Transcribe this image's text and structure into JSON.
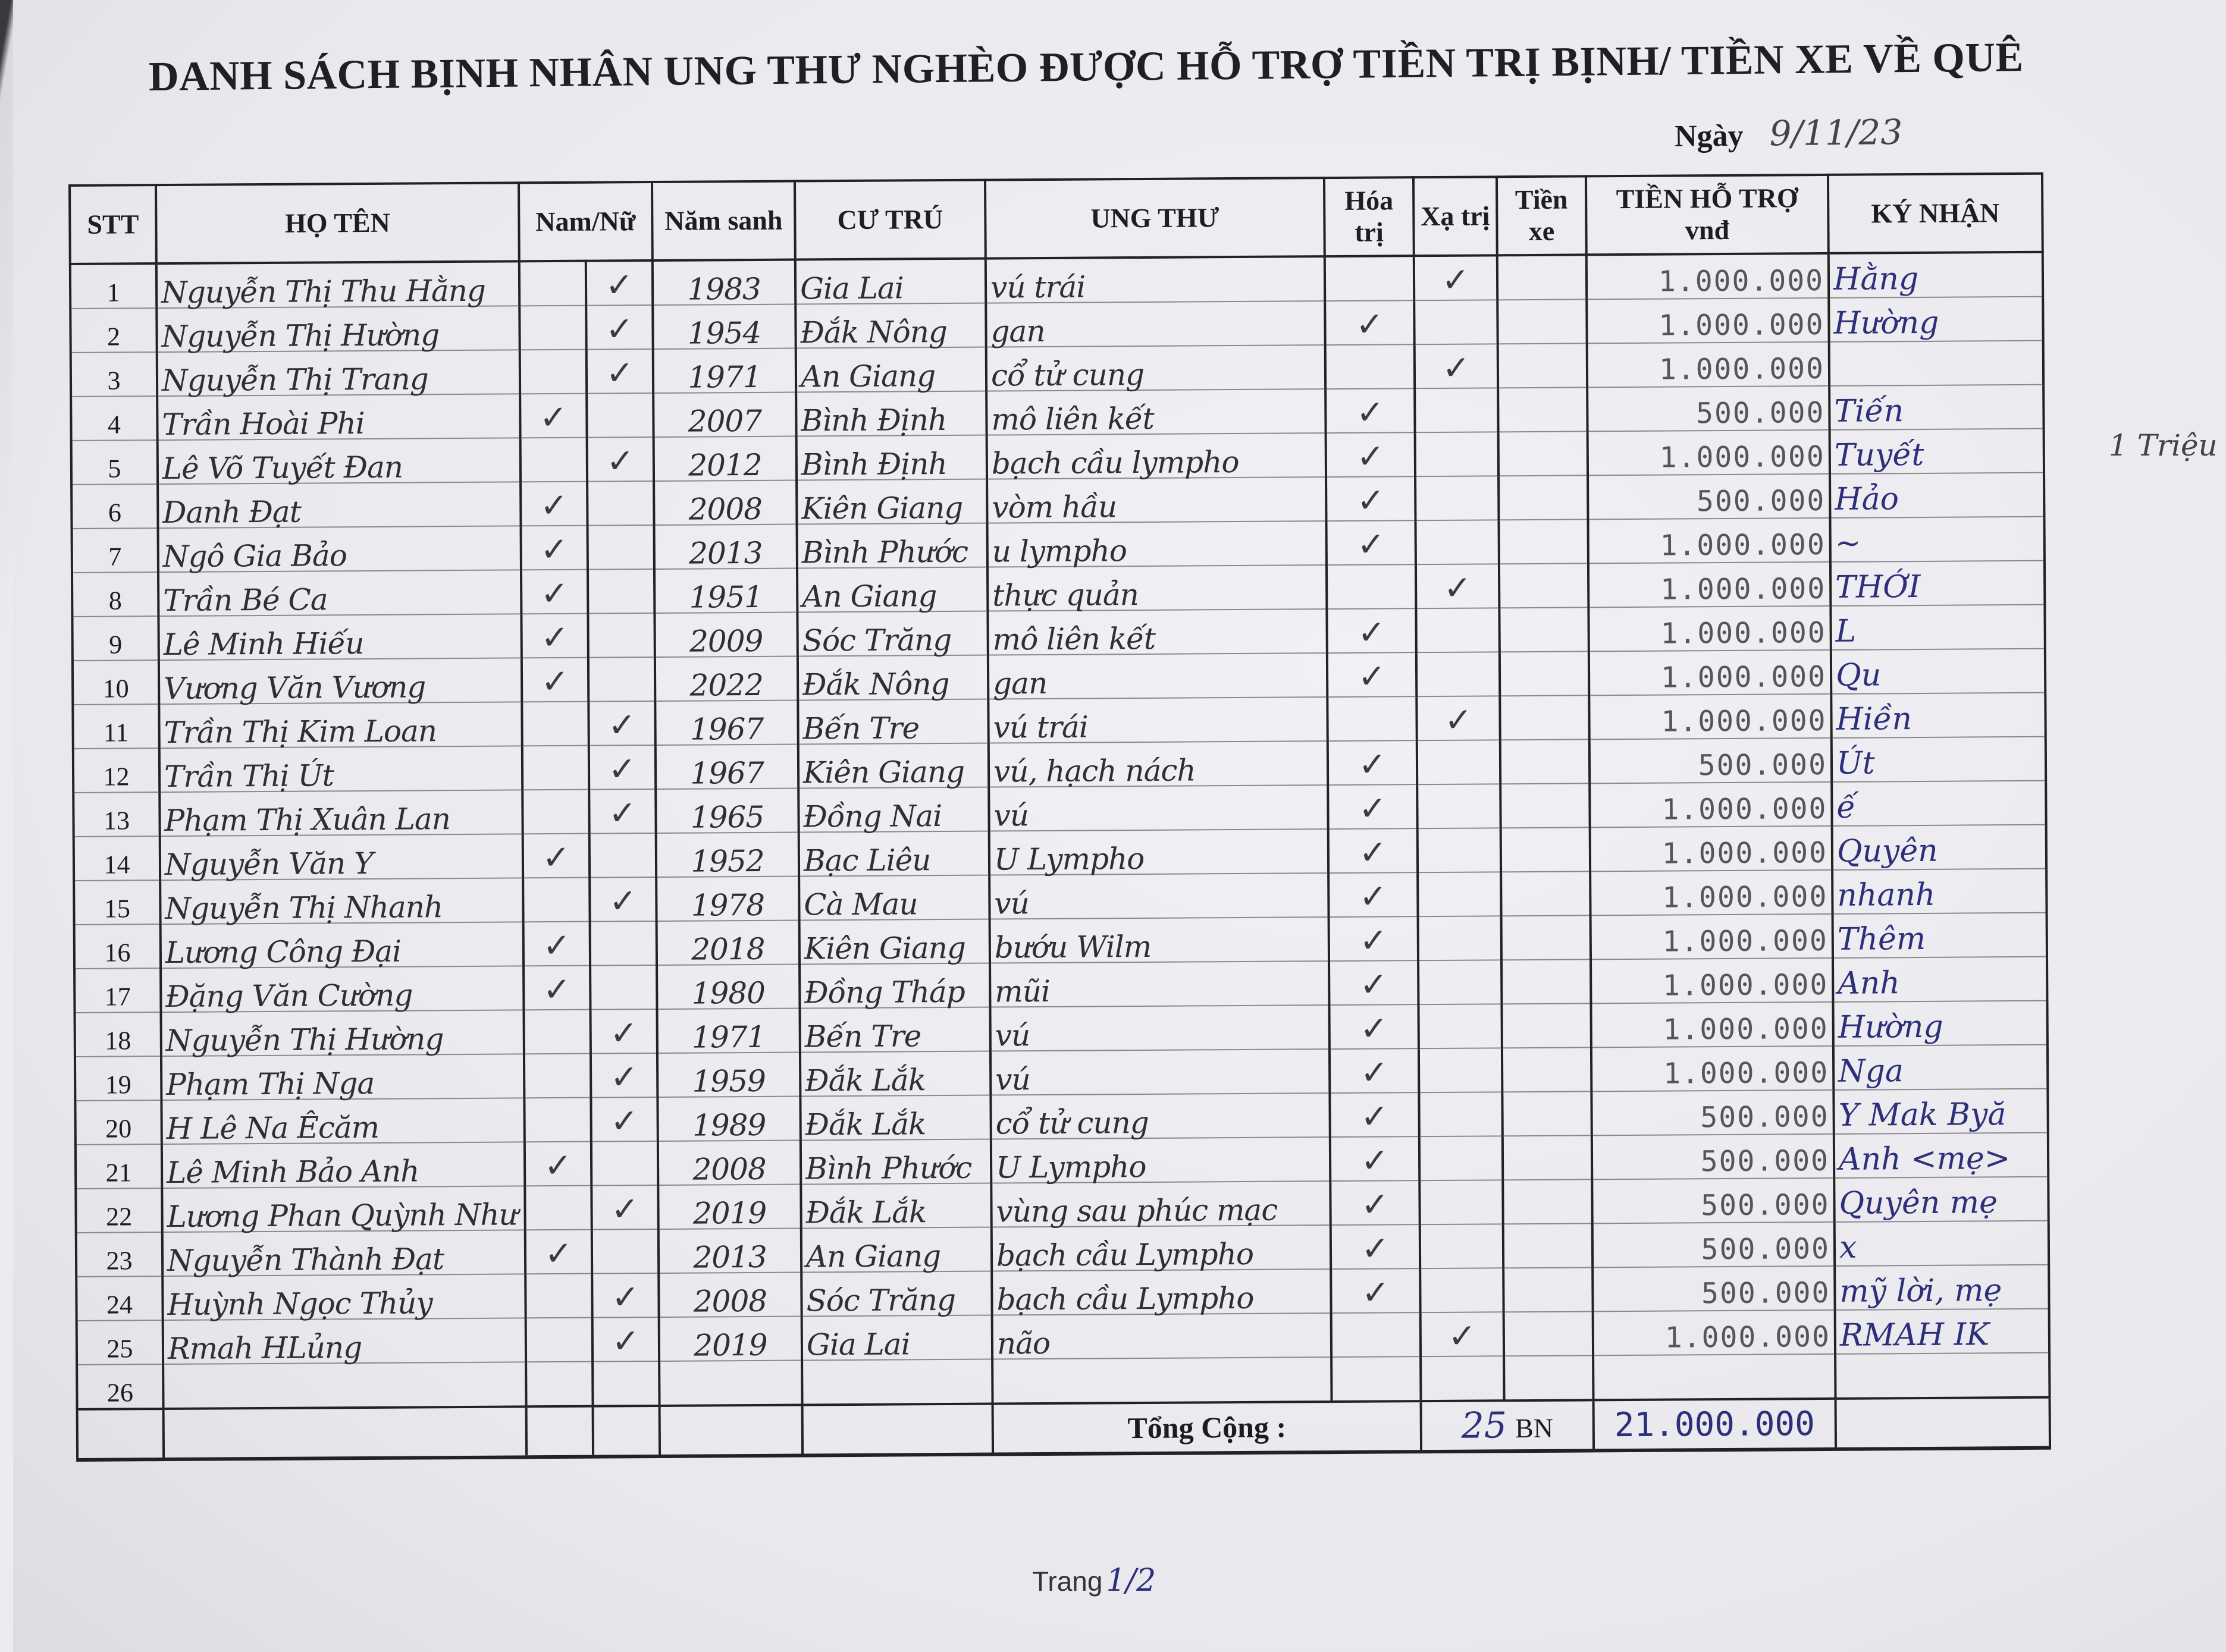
{
  "title": "DANH SÁCH BỊNH NHÂN UNG THƯ NGHÈO ĐƯỢC HỖ TRỢ TIỀN TRỊ BỊNH/ TIỀN XE VỀ QUÊ",
  "date_label": "Ngày",
  "date_value": "9/11/23",
  "headers": {
    "stt": "STT",
    "ho_ten": "HỌ TÊN",
    "gioi_tinh": "Nam/Nữ",
    "nam_sanh": "Năm sanh",
    "cu_tru": "CƯ TRÚ",
    "ung_thu": "UNG THƯ",
    "hoa_tri": "Hóa trị",
    "xa_tri": "Xạ trị",
    "tien_xe": "Tiền xe",
    "tien_ho_tro": "TIỀN HỖ TRỢ",
    "tien_ho_tro_unit": "vnđ",
    "ky_nhan": "KÝ NHẬN"
  },
  "check_mark": "✓",
  "rows": [
    {
      "stt": "1",
      "name": "Nguyễn Thị Thu Hằng",
      "gender": "nu",
      "year": "1983",
      "residence": "Gia Lai",
      "cancer": "vú trái",
      "hoa_tri": false,
      "xa_tri": true,
      "amount": "1.000.000",
      "signature": "Hằng"
    },
    {
      "stt": "2",
      "name": "Nguyễn Thị Hường",
      "gender": "nu",
      "year": "1954",
      "residence": "Đắk Nông",
      "cancer": "gan",
      "hoa_tri": true,
      "xa_tri": false,
      "amount": "1.000.000",
      "signature": "Hường"
    },
    {
      "stt": "3",
      "name": "Nguyễn Thị Trang",
      "gender": "nu",
      "year": "1971",
      "residence": "An Giang",
      "cancer": "cổ tử cung",
      "hoa_tri": false,
      "xa_tri": true,
      "amount": "1.000.000",
      "signature": ""
    },
    {
      "stt": "4",
      "name": "Trần Hoài Phi",
      "gender": "nam",
      "year": "2007",
      "residence": "Bình Định",
      "cancer": "mô liên kết",
      "hoa_tri": true,
      "xa_tri": false,
      "amount": "500.000",
      "signature": "Tiến"
    },
    {
      "stt": "5",
      "name": "Lê Võ Tuyết Đan",
      "gender": "nu",
      "year": "2012",
      "residence": "Bình Định",
      "cancer": "bạch cầu lympho",
      "hoa_tri": true,
      "xa_tri": false,
      "amount": "1.000.000",
      "signature": "Tuyết"
    },
    {
      "stt": "6",
      "name": "Danh Đạt",
      "gender": "nam",
      "year": "2008",
      "residence": "Kiên Giang",
      "cancer": "vòm hầu",
      "hoa_tri": true,
      "xa_tri": false,
      "amount": "500.000",
      "signature": "Hảo"
    },
    {
      "stt": "7",
      "name": "Ngô Gia Bảo",
      "gender": "nam",
      "year": "2013",
      "residence": "Bình Phước",
      "cancer": "u lympho",
      "hoa_tri": true,
      "xa_tri": false,
      "amount": "1.000.000",
      "signature": "~"
    },
    {
      "stt": "8",
      "name": "Trần Bé Ca",
      "gender": "nam",
      "year": "1951",
      "residence": "An Giang",
      "cancer": "thực quản",
      "hoa_tri": false,
      "xa_tri": true,
      "amount": "1.000.000",
      "signature": "THỚI"
    },
    {
      "stt": "9",
      "name": "Lê Minh Hiếu",
      "gender": "nam",
      "year": "2009",
      "residence": "Sóc Trăng",
      "cancer": "mô liên kết",
      "hoa_tri": true,
      "xa_tri": false,
      "amount": "1.000.000",
      "signature": "L"
    },
    {
      "stt": "10",
      "name": "Vương Văn Vương",
      "gender": "nam",
      "year": "2022",
      "residence": "Đắk Nông",
      "cancer": "gan",
      "hoa_tri": true,
      "xa_tri": false,
      "amount": "1.000.000",
      "signature": "Qu"
    },
    {
      "stt": "11",
      "name": "Trần Thị Kim Loan",
      "gender": "nu",
      "year": "1967",
      "residence": "Bến Tre",
      "cancer": "vú trái",
      "hoa_tri": false,
      "xa_tri": true,
      "amount": "1.000.000",
      "signature": "Hiền"
    },
    {
      "stt": "12",
      "name": "Trần Thị Út",
      "gender": "nu",
      "year": "1967",
      "residence": "Kiên Giang",
      "cancer": "vú, hạch nách",
      "hoa_tri": true,
      "xa_tri": false,
      "amount": "500.000",
      "signature": "Út"
    },
    {
      "stt": "13",
      "name": "Phạm Thị Xuân Lan",
      "gender": "nu",
      "year": "1965",
      "residence": "Đồng Nai",
      "cancer": "vú",
      "hoa_tri": true,
      "xa_tri": false,
      "amount": "1.000.000",
      "signature": "ế"
    },
    {
      "stt": "14",
      "name": "Nguyễn Văn Y",
      "gender": "nam",
      "year": "1952",
      "residence": "Bạc Liêu",
      "cancer": "U Lympho",
      "hoa_tri": true,
      "xa_tri": false,
      "amount": "1.000.000",
      "signature": "Quyên"
    },
    {
      "stt": "15",
      "name": "Nguyễn Thị Nhanh",
      "gender": "nu",
      "year": "1978",
      "residence": "Cà Mau",
      "cancer": "vú",
      "hoa_tri": true,
      "xa_tri": false,
      "amount": "1.000.000",
      "signature": "nhanh"
    },
    {
      "stt": "16",
      "name": "Lương Công Đại",
      "gender": "nam",
      "year": "2018",
      "residence": "Kiên Giang",
      "cancer": "bướu Wilm",
      "hoa_tri": true,
      "xa_tri": false,
      "amount": "1.000.000",
      "signature": "Thêm"
    },
    {
      "stt": "17",
      "name": "Đặng Văn Cường",
      "gender": "nam",
      "year": "1980",
      "residence": "Đồng Tháp",
      "cancer": "mũi",
      "hoa_tri": true,
      "xa_tri": false,
      "amount": "1.000.000",
      "signature": "Anh"
    },
    {
      "stt": "18",
      "name": "Nguyễn Thị Hường",
      "gender": "nu",
      "year": "1971",
      "residence": "Bến Tre",
      "cancer": "vú",
      "hoa_tri": true,
      "xa_tri": false,
      "amount": "1.000.000",
      "signature": "Hường"
    },
    {
      "stt": "19",
      "name": "Phạm Thị Nga",
      "gender": "nu",
      "year": "1959",
      "residence": "Đắk Lắk",
      "cancer": "vú",
      "hoa_tri": true,
      "xa_tri": false,
      "amount": "1.000.000",
      "signature": "Nga"
    },
    {
      "stt": "20",
      "name": "H Lê Na Êcăm",
      "gender": "nu",
      "year": "1989",
      "residence": "Đắk Lắk",
      "cancer": "cổ tử cung",
      "hoa_tri": true,
      "xa_tri": false,
      "amount": "500.000",
      "signature": "Y Mak Byă"
    },
    {
      "stt": "21",
      "name": "Lê Minh Bảo Anh",
      "gender": "nam",
      "year": "2008",
      "residence": "Bình Phước",
      "cancer": "U Lympho",
      "hoa_tri": true,
      "xa_tri": false,
      "amount": "500.000",
      "signature": "Anh <mẹ>"
    },
    {
      "stt": "22",
      "name": "Lương Phan Quỳnh Như",
      "gender": "nu",
      "year": "2019",
      "residence": "Đắk Lắk",
      "cancer": "vùng sau phúc mạc",
      "hoa_tri": true,
      "xa_tri": false,
      "amount": "500.000",
      "signature": "Quyên mẹ"
    },
    {
      "stt": "23",
      "name": "Nguyễn Thành Đạt",
      "gender": "nam",
      "year": "2013",
      "residence": "An Giang",
      "cancer": "bạch cầu Lympho",
      "hoa_tri": true,
      "xa_tri": false,
      "amount": "500.000",
      "signature": "x"
    },
    {
      "stt": "24",
      "name": "Huỳnh Ngọc Thủy",
      "gender": "nu",
      "year": "2008",
      "residence": "Sóc Trăng",
      "cancer": "bạch cầu Lympho",
      "hoa_tri": true,
      "xa_tri": false,
      "amount": "500.000",
      "signature": "mỹ lời, mẹ"
    },
    {
      "stt": "25",
      "name": "Rmah HLủng",
      "gender": "nu",
      "year": "2019",
      "residence": "Gia Lai",
      "cancer": "não",
      "hoa_tri": false,
      "xa_tri": true,
      "amount": "1.000.000",
      "signature": "RMAH IK"
    },
    {
      "stt": "26",
      "name": "",
      "gender": "",
      "year": "",
      "residence": "",
      "cancer": "",
      "hoa_tri": false,
      "xa_tri": false,
      "amount": "",
      "signature": ""
    }
  ],
  "total": {
    "label": "Tổng Cộng :",
    "count": "25",
    "count_unit": "BN",
    "amount": "21.000.000"
  },
  "margin_note": "1 Triệu",
  "footer": {
    "page_label": "Trang",
    "page_value": "1/2"
  }
}
